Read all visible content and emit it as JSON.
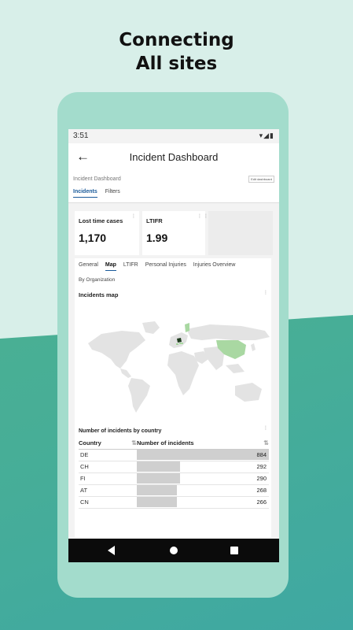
{
  "headline": {
    "line1": "Connecting",
    "line2": "All sites"
  },
  "status": {
    "time": "3:51",
    "icons": "▾◢▮"
  },
  "appbar": {
    "back_icon": "←",
    "title": "Incident Dashboard"
  },
  "dashboard": {
    "name": "Incident Dashboard",
    "edit_label": "Edit dashboard",
    "tabs": [
      "Incidents",
      "Filters"
    ]
  },
  "kpis": [
    {
      "label": "Lost time cases",
      "value": "1,170"
    },
    {
      "label": "LTIFR",
      "value": "1.99"
    }
  ],
  "subtabs": [
    "General",
    "Map",
    "LTIFR",
    "Personal Injuries",
    "Injuries Overview"
  ],
  "by_organization": "By Organization",
  "map": {
    "title": "Incidents map",
    "highlight_color": "#a9d8a2",
    "top_country_color": "#1e3b1e"
  },
  "table": {
    "title": "Number of incidents by country",
    "headers": {
      "country": "Country",
      "incidents": "Number of incidents"
    },
    "rows": [
      {
        "country": "DE",
        "value": "884",
        "ratio": 1.0
      },
      {
        "country": "CH",
        "value": "292",
        "ratio": 0.33
      },
      {
        "country": "FI",
        "value": "290",
        "ratio": 0.328
      },
      {
        "country": "AT",
        "value": "268",
        "ratio": 0.303
      },
      {
        "country": "CN",
        "value": "266",
        "ratio": 0.301
      }
    ]
  },
  "menu_icon": "⋮",
  "sort_icon": "⇅"
}
